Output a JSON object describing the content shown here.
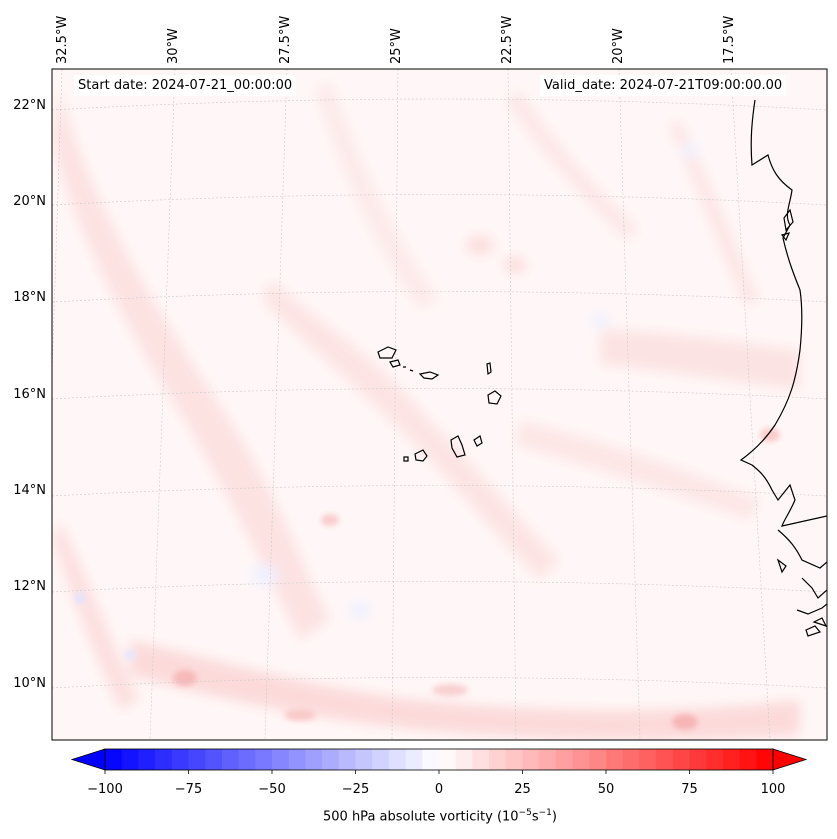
{
  "map": {
    "start_date": "Start date: 2024-07-21_00:00:00",
    "valid_date": "Valid_date: 2024-07-21T09:00:00.00",
    "longitude_labels": [
      "32.5°W",
      "30°W",
      "27.5°W",
      "25°W",
      "22.5°W",
      "20°W",
      "17.5°W"
    ],
    "latitude_labels": [
      "22°N",
      "20°N",
      "18°N",
      "16°N",
      "14°N",
      "12°N",
      "10°N"
    ],
    "field": "500 hPa absolute vorticity",
    "places": [
      "Cape Verde Islands",
      "West African coast"
    ]
  },
  "colorbar": {
    "label_text": "500 hPa absolute vorticity (10",
    "label_exp1": "−5",
    "label_mid": "s",
    "label_exp2": "−1",
    "label_end": ")",
    "ticks": [
      "−100",
      "−75",
      "−50",
      "−25",
      "0",
      "25",
      "50",
      "75",
      "100"
    ],
    "min": -100,
    "max": 100,
    "levels": 41,
    "colormap": "bwr",
    "low_color": "#0000ff",
    "mid_color": "#ffffff",
    "high_color": "#ff0000"
  }
}
